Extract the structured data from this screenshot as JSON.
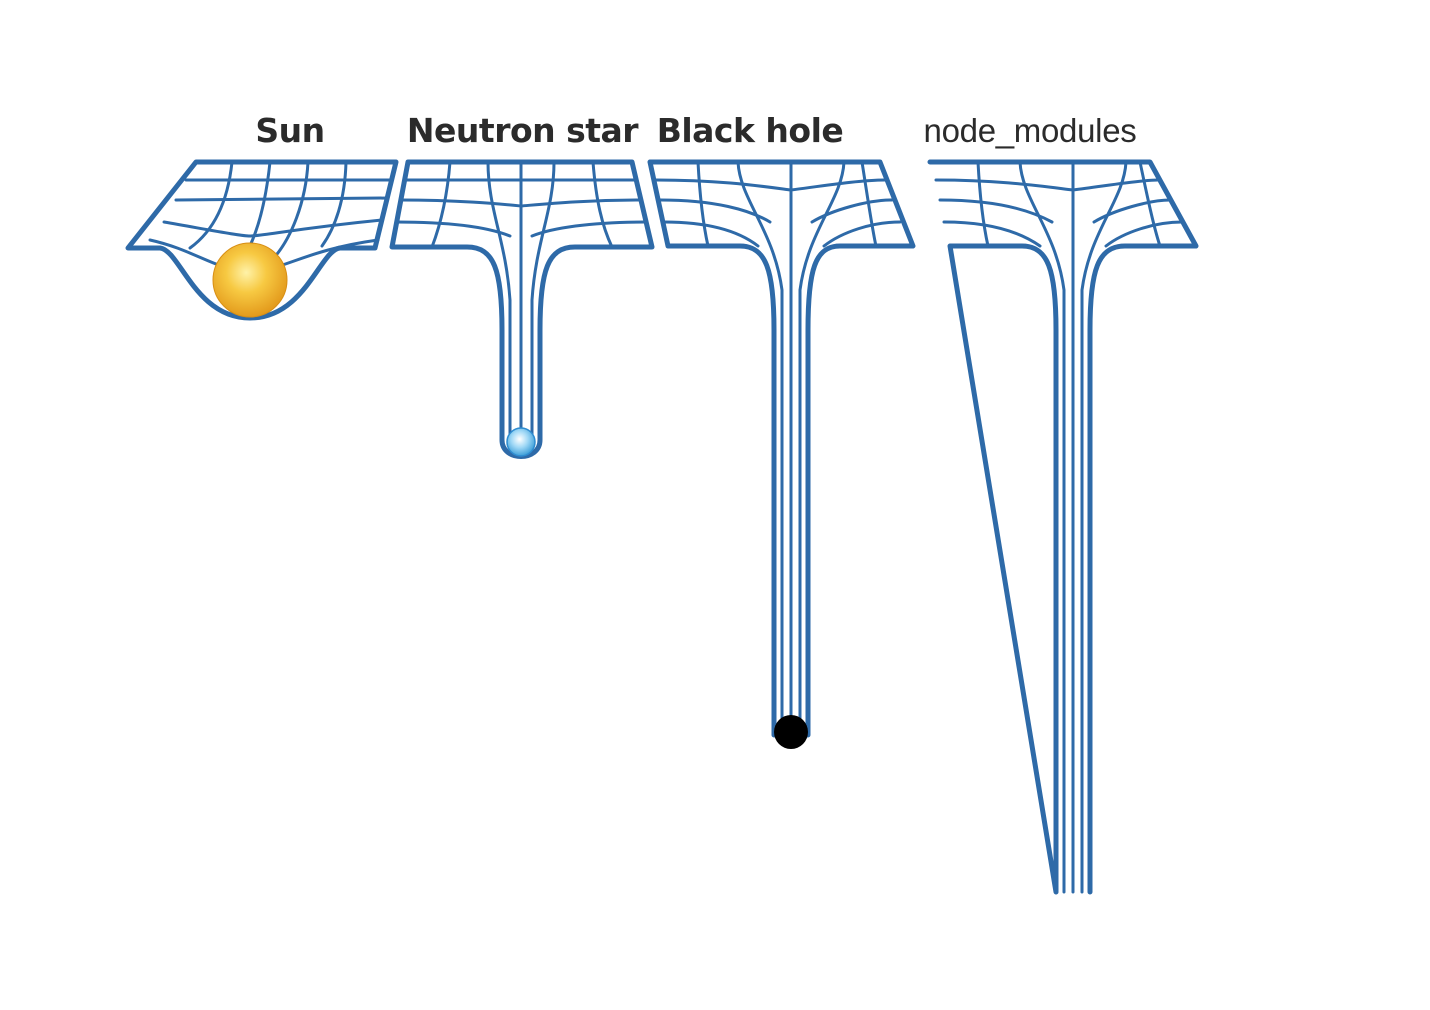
{
  "labels": {
    "sun": "Sun",
    "neutron_star": "Neutron star",
    "black_hole": "Black hole",
    "node_modules": "node_modules"
  },
  "colors": {
    "grid": "#2e6aa8",
    "sun": "#f2b632",
    "neutron_star": "#7cc6f0",
    "black_hole": "#000000",
    "text": "#2b2b2b"
  }
}
